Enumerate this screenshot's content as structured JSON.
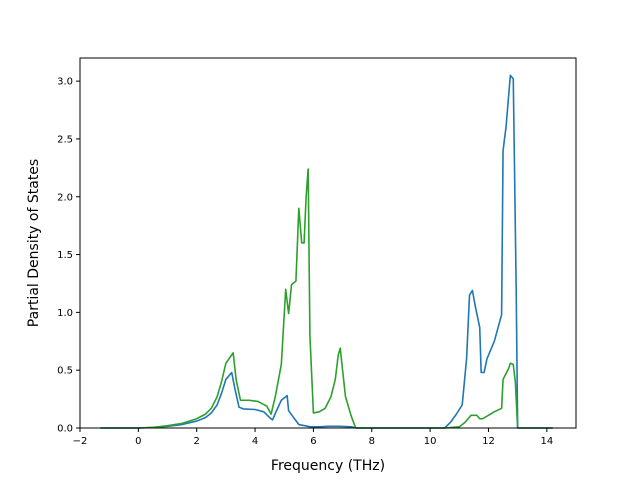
{
  "chart_data": {
    "type": "line",
    "title": "",
    "xlabel": "Frequency (THz)",
    "ylabel": "Partial Density of States",
    "xlim": [
      -2.0,
      15.0
    ],
    "ylim": [
      0.0,
      3.2
    ],
    "xticks": [
      -2,
      0,
      2,
      4,
      6,
      8,
      10,
      12,
      14
    ],
    "xtick_labels": [
      "−2",
      "0",
      "2",
      "4",
      "6",
      "8",
      "10",
      "12",
      "14"
    ],
    "yticks": [
      0.0,
      0.5,
      1.0,
      1.5,
      2.0,
      2.5,
      3.0
    ],
    "ytick_labels": [
      "0.0",
      "0.5",
      "1.0",
      "1.5",
      "2.0",
      "2.5",
      "3.0"
    ],
    "grid": false,
    "legend": "none",
    "series": [
      {
        "color": "#1f77b4",
        "points": [
          [
            -1.3,
            0.0
          ],
          [
            -1.0,
            0.0
          ],
          [
            0.0,
            0.0
          ],
          [
            0.5,
            0.005
          ],
          [
            1.0,
            0.015
          ],
          [
            1.5,
            0.03
          ],
          [
            2.0,
            0.06
          ],
          [
            2.3,
            0.09
          ],
          [
            2.5,
            0.13
          ],
          [
            2.7,
            0.2
          ],
          [
            2.85,
            0.3
          ],
          [
            3.0,
            0.42
          ],
          [
            3.2,
            0.48
          ],
          [
            3.3,
            0.35
          ],
          [
            3.45,
            0.18
          ],
          [
            3.6,
            0.165
          ],
          [
            4.0,
            0.16
          ],
          [
            4.3,
            0.14
          ],
          [
            4.5,
            0.09
          ],
          [
            4.6,
            0.07
          ],
          [
            4.7,
            0.13
          ],
          [
            4.9,
            0.24
          ],
          [
            5.1,
            0.28
          ],
          [
            5.15,
            0.15
          ],
          [
            5.35,
            0.08
          ],
          [
            5.5,
            0.03
          ],
          [
            5.7,
            0.02
          ],
          [
            5.9,
            0.01
          ],
          [
            6.2,
            0.01
          ],
          [
            6.5,
            0.015
          ],
          [
            6.9,
            0.015
          ],
          [
            7.3,
            0.01
          ],
          [
            7.5,
            0.0
          ],
          [
            9.0,
            0.0
          ],
          [
            10.5,
            0.0
          ],
          [
            10.7,
            0.05
          ],
          [
            10.9,
            0.12
          ],
          [
            11.1,
            0.2
          ],
          [
            11.25,
            0.6
          ],
          [
            11.35,
            1.15
          ],
          [
            11.45,
            1.19
          ],
          [
            11.55,
            1.05
          ],
          [
            11.7,
            0.87
          ],
          [
            11.75,
            0.48
          ],
          [
            11.85,
            0.48
          ],
          [
            11.95,
            0.6
          ],
          [
            12.2,
            0.75
          ],
          [
            12.45,
            0.98
          ],
          [
            12.5,
            2.4
          ],
          [
            12.6,
            2.6
          ],
          [
            12.75,
            3.05
          ],
          [
            12.85,
            3.02
          ],
          [
            12.95,
            1.2
          ],
          [
            13.0,
            0.0
          ],
          [
            13.5,
            0.0
          ],
          [
            14.2,
            0.0
          ]
        ]
      },
      {
        "color": "#2ca02c",
        "points": [
          [
            -1.3,
            0.0
          ],
          [
            -1.0,
            0.0
          ],
          [
            0.0,
            0.0
          ],
          [
            0.5,
            0.005
          ],
          [
            1.0,
            0.02
          ],
          [
            1.5,
            0.04
          ],
          [
            2.0,
            0.08
          ],
          [
            2.3,
            0.12
          ],
          [
            2.5,
            0.17
          ],
          [
            2.7,
            0.27
          ],
          [
            2.85,
            0.4
          ],
          [
            3.0,
            0.56
          ],
          [
            3.25,
            0.65
          ],
          [
            3.35,
            0.42
          ],
          [
            3.5,
            0.24
          ],
          [
            3.8,
            0.24
          ],
          [
            4.1,
            0.23
          ],
          [
            4.4,
            0.19
          ],
          [
            4.55,
            0.12
          ],
          [
            4.7,
            0.28
          ],
          [
            4.9,
            0.55
          ],
          [
            5.05,
            1.2
          ],
          [
            5.15,
            0.99
          ],
          [
            5.25,
            1.24
          ],
          [
            5.4,
            1.27
          ],
          [
            5.5,
            1.9
          ],
          [
            5.6,
            1.6
          ],
          [
            5.68,
            1.6
          ],
          [
            5.75,
            2.0
          ],
          [
            5.82,
            2.24
          ],
          [
            5.88,
            0.8
          ],
          [
            6.0,
            0.13
          ],
          [
            6.2,
            0.14
          ],
          [
            6.4,
            0.17
          ],
          [
            6.6,
            0.27
          ],
          [
            6.75,
            0.42
          ],
          [
            6.85,
            0.63
          ],
          [
            6.92,
            0.69
          ],
          [
            7.0,
            0.5
          ],
          [
            7.1,
            0.27
          ],
          [
            7.3,
            0.1
          ],
          [
            7.45,
            0.0
          ],
          [
            9.0,
            0.0
          ],
          [
            10.5,
            0.0
          ],
          [
            11.0,
            0.01
          ],
          [
            11.2,
            0.05
          ],
          [
            11.4,
            0.11
          ],
          [
            11.6,
            0.11
          ],
          [
            11.7,
            0.08
          ],
          [
            11.8,
            0.08
          ],
          [
            12.0,
            0.11
          ],
          [
            12.2,
            0.14
          ],
          [
            12.45,
            0.17
          ],
          [
            12.5,
            0.42
          ],
          [
            12.7,
            0.52
          ],
          [
            12.75,
            0.56
          ],
          [
            12.85,
            0.55
          ],
          [
            12.92,
            0.4
          ],
          [
            13.0,
            0.0
          ],
          [
            13.5,
            0.0
          ],
          [
            14.2,
            0.0
          ]
        ]
      }
    ]
  }
}
